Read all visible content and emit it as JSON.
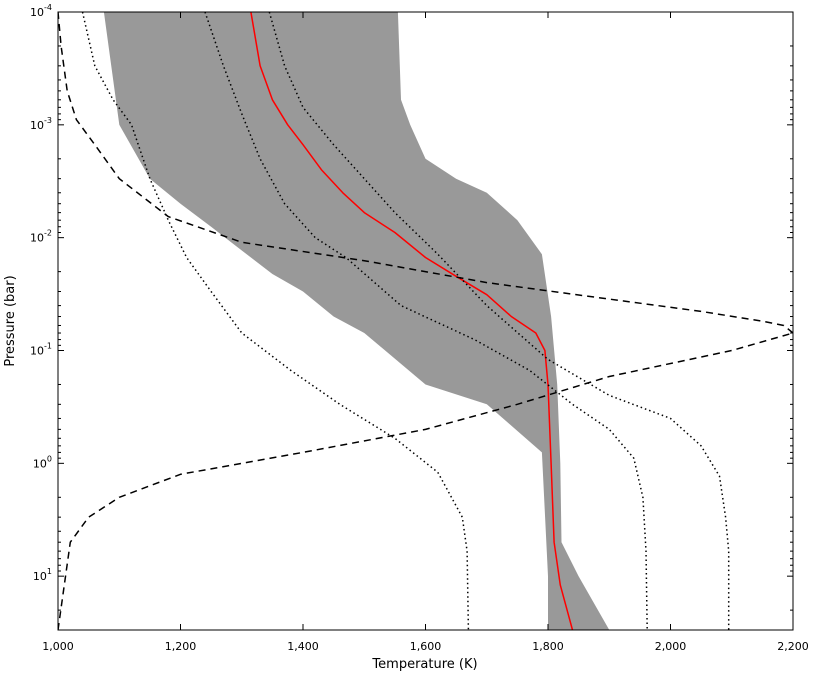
{
  "chart_data": {
    "type": "area",
    "xlabel": "Temperature (K)",
    "ylabel": "Pressure (bar)",
    "xlim": [
      1000,
      2200
    ],
    "ylim": [
      30,
      0.0001
    ],
    "y_scale": "log",
    "y_inverted": true,
    "grid": false,
    "x_ticks": [
      1000,
      1200,
      1400,
      1600,
      1800,
      2000,
      2200
    ],
    "x_tick_labels": [
      "1,000",
      "1,200",
      "1,400",
      "1,600",
      "1,800",
      "2,000",
      "2,200"
    ],
    "y_ticks": [
      0.0001,
      0.001,
      0.01,
      0.1,
      1,
      10
    ],
    "y_tick_labels": [
      {
        "base": "10",
        "exp": "-4"
      },
      {
        "base": "10",
        "exp": "-3"
      },
      {
        "base": "10",
        "exp": "-2"
      },
      {
        "base": "10",
        "exp": "-1"
      },
      {
        "base": "10",
        "exp": "0"
      },
      {
        "base": "10",
        "exp": "1"
      }
    ],
    "band": {
      "color": "#999999",
      "left": [
        [
          1075,
          0.0001
        ],
        [
          1100,
          0.001
        ],
        [
          1150,
          0.003
        ],
        [
          1200,
          0.005
        ],
        [
          1250,
          0.008
        ],
        [
          1300,
          0.013
        ],
        [
          1350,
          0.021
        ],
        [
          1400,
          0.03
        ],
        [
          1450,
          0.05
        ],
        [
          1500,
          0.07
        ],
        [
          1600,
          0.2
        ],
        [
          1700,
          0.3
        ],
        [
          1790,
          0.8
        ],
        [
          1800,
          10
        ],
        [
          1800,
          30
        ]
      ],
      "right": [
        [
          1555,
          0.0001
        ],
        [
          1560,
          0.0006
        ],
        [
          1575,
          0.001
        ],
        [
          1600,
          0.002
        ],
        [
          1650,
          0.003
        ],
        [
          1700,
          0.004
        ],
        [
          1750,
          0.007
        ],
        [
          1790,
          0.014
        ],
        [
          1805,
          0.05
        ],
        [
          1815,
          0.2
        ],
        [
          1820,
          1
        ],
        [
          1822,
          5
        ],
        [
          1850,
          10
        ],
        [
          1900,
          30
        ]
      ]
    },
    "series": [
      {
        "style": "solid",
        "color": "#ff0000",
        "points": [
          [
            1315,
            0.0001
          ],
          [
            1330,
            0.0003
          ],
          [
            1350,
            0.0006
          ],
          [
            1375,
            0.001
          ],
          [
            1400,
            0.0015
          ],
          [
            1430,
            0.0025
          ],
          [
            1465,
            0.004
          ],
          [
            1500,
            0.006
          ],
          [
            1550,
            0.009
          ],
          [
            1600,
            0.015
          ],
          [
            1650,
            0.022
          ],
          [
            1700,
            0.032
          ],
          [
            1740,
            0.05
          ],
          [
            1780,
            0.07
          ],
          [
            1795,
            0.1
          ],
          [
            1800,
            0.2
          ],
          [
            1805,
            1
          ],
          [
            1810,
            5
          ],
          [
            1820,
            12
          ],
          [
            1840,
            30
          ]
        ]
      },
      {
        "style": "dashed",
        "color": "#000000",
        "points": [
          [
            1000,
            30
          ],
          [
            1020,
            5
          ],
          [
            1050,
            3
          ],
          [
            1100,
            2
          ],
          [
            1200,
            1.25
          ],
          [
            1400,
            0.8
          ],
          [
            1600,
            0.5
          ],
          [
            1750,
            0.3
          ],
          [
            1900,
            0.17
          ],
          [
            2100,
            0.1
          ],
          [
            2200,
            0.07
          ]
        ]
      },
      {
        "style": "dashed",
        "color": "#000000",
        "points": [
          [
            1000,
            0.0001
          ],
          [
            1005,
            0.0002
          ],
          [
            1015,
            0.0005
          ],
          [
            1030,
            0.0009
          ],
          [
            1060,
            0.0015
          ],
          [
            1100,
            0.003
          ],
          [
            1180,
            0.0065
          ],
          [
            1300,
            0.011
          ],
          [
            1500,
            0.016
          ],
          [
            1700,
            0.025
          ],
          [
            1900,
            0.035
          ],
          [
            2050,
            0.045
          ],
          [
            2150,
            0.055
          ],
          [
            2185,
            0.06
          ],
          [
            2200,
            0.07
          ]
        ]
      },
      {
        "style": "dotted",
        "color": "#000000",
        "points": [
          [
            1040,
            0.0001
          ],
          [
            1060,
            0.0003
          ],
          [
            1090,
            0.0006
          ],
          [
            1120,
            0.001
          ],
          [
            1150,
            0.003
          ],
          [
            1180,
            0.007
          ],
          [
            1210,
            0.015
          ],
          [
            1250,
            0.03
          ],
          [
            1300,
            0.07
          ],
          [
            1380,
            0.15
          ],
          [
            1460,
            0.3
          ],
          [
            1550,
            0.6
          ],
          [
            1620,
            1.2
          ],
          [
            1660,
            3
          ],
          [
            1668,
            6
          ],
          [
            1670,
            30
          ]
        ]
      },
      {
        "style": "dotted",
        "color": "#000000",
        "points": [
          [
            1240,
            0.0001
          ],
          [
            1270,
            0.0003
          ],
          [
            1300,
            0.0008
          ],
          [
            1330,
            0.002
          ],
          [
            1370,
            0.005
          ],
          [
            1420,
            0.01
          ],
          [
            1470,
            0.015
          ],
          [
            1560,
            0.04
          ],
          [
            1680,
            0.08
          ],
          [
            1770,
            0.15
          ],
          [
            1840,
            0.3
          ],
          [
            1900,
            0.5
          ],
          [
            1940,
            0.9
          ],
          [
            1955,
            2
          ],
          [
            1960,
            6
          ],
          [
            1962,
            30
          ]
        ]
      },
      {
        "style": "dotted",
        "color": "#000000",
        "points": [
          [
            1345,
            0.0001
          ],
          [
            1370,
            0.0003
          ],
          [
            1400,
            0.0007
          ],
          [
            1450,
            0.0015
          ],
          [
            1500,
            0.003
          ],
          [
            1550,
            0.006
          ],
          [
            1620,
            0.014
          ],
          [
            1700,
            0.04
          ],
          [
            1800,
            0.12
          ],
          [
            1900,
            0.25
          ],
          [
            2000,
            0.4
          ],
          [
            2050,
            0.7
          ],
          [
            2080,
            1.3
          ],
          [
            2090,
            3
          ],
          [
            2095,
            6
          ],
          [
            2095,
            30
          ]
        ]
      }
    ]
  }
}
